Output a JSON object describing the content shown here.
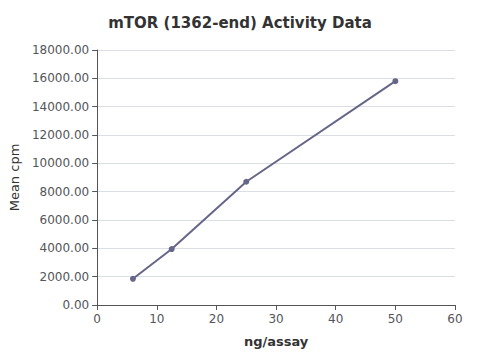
{
  "chart_data": {
    "type": "line",
    "title": "mTOR (1362-end) Activity Data",
    "xlabel": "ng/assay",
    "ylabel": "Mean cpm",
    "x": [
      6,
      12.5,
      25,
      50
    ],
    "values": [
      1850,
      3950,
      8700,
      15800
    ],
    "color": "#666688",
    "marker": "circle",
    "xlim": [
      0,
      60
    ],
    "ylim": [
      0,
      18000
    ],
    "xticks": [
      0,
      10,
      20,
      30,
      40,
      50,
      60
    ],
    "yticks": [
      {
        "value": 0,
        "label": "0.00"
      },
      {
        "value": 2000,
        "label": "2000.00"
      },
      {
        "value": 4000,
        "label": "4000.00"
      },
      {
        "value": 6000,
        "label": "6000.00"
      },
      {
        "value": 8000,
        "label": "8000.00"
      },
      {
        "value": 10000,
        "label": "10000.00"
      },
      {
        "value": 12000,
        "label": "12000.00"
      },
      {
        "value": 14000,
        "label": "14000.00"
      },
      {
        "value": 16000,
        "label": "16000.00"
      },
      {
        "value": 18000,
        "label": "18000.00"
      }
    ],
    "grid": "y"
  }
}
